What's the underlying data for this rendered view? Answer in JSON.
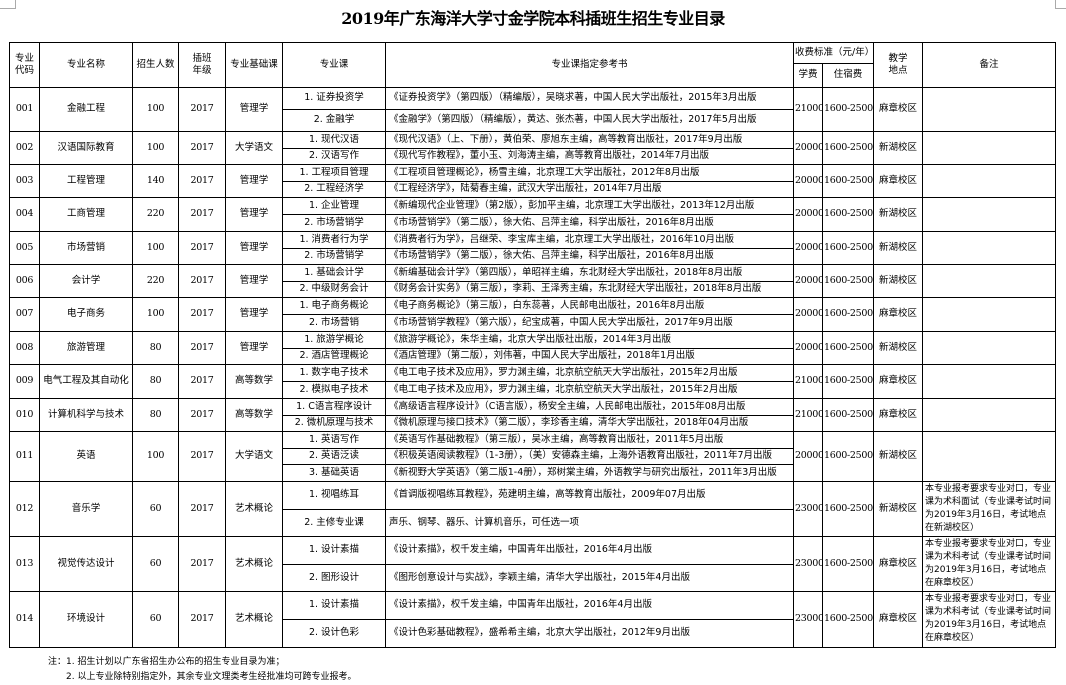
{
  "title": "2019年广东海洋大学寸金学院本科插班生招生专业目录",
  "headers": {
    "code": "专业代码",
    "name": "专业名称",
    "quota": "招生人数",
    "grade": "插班年级",
    "basic_course": "专业基础课",
    "course": "专业课",
    "books": "专业课指定参考书",
    "fees": "收费标准（元/年）",
    "tuition": "学费",
    "dorm": "住宿费",
    "campus": "教学地点",
    "remarks": "备注"
  },
  "rows": [
    {
      "code": "001",
      "name": "金融工程",
      "quota": "100",
      "grade": "2017",
      "basic": "管理学",
      "tuition": "21000",
      "dorm": "1600-2500",
      "campus": "麻章校区",
      "remark": "",
      "courses": [
        {
          "course": "1. 证券投资学",
          "book": "《证券投资学》（第四版）（精编版），吴晓求著，中国人民大学出版社，2015年3月出版"
        },
        {
          "course": "2. 金融学",
          "book": "《金融学》（第四版）（精编版），黄达、张杰著，中国人民大学出版社，2017年5月出版"
        }
      ]
    },
    {
      "code": "002",
      "name": "汉语国际教育",
      "quota": "100",
      "grade": "2017",
      "basic": "大学语文",
      "tuition": "20000",
      "dorm": "1600-2500",
      "campus": "新湖校区",
      "remark": "",
      "courses": [
        {
          "course": "1. 现代汉语",
          "book": "《现代汉语》（上、下册），黄伯荣、廖旭东主编，高等教育出版社，2017年9月出版"
        },
        {
          "course": "2. 汉语写作",
          "book": "《现代写作教程》，董小玉、刘海涛主编，高等教育出版社，2014年7月出版"
        }
      ]
    },
    {
      "code": "003",
      "name": "工程管理",
      "quota": "140",
      "grade": "2017",
      "basic": "管理学",
      "tuition": "20000",
      "dorm": "1600-2500",
      "campus": "麻章校区",
      "remark": "",
      "courses": [
        {
          "course": "1. 工程项目管理",
          "book": "《工程项目管理概论》，杨雪主编，北京理工大学出版社，2012年8月出版"
        },
        {
          "course": "2. 工程经济学",
          "book": "《工程经济学》，陆菊春主编，武汉大学出版社，2014年7月出版"
        }
      ]
    },
    {
      "code": "004",
      "name": "工商管理",
      "quota": "220",
      "grade": "2017",
      "basic": "管理学",
      "tuition": "20000",
      "dorm": "1600-2500",
      "campus": "新湖校区",
      "remark": "",
      "courses": [
        {
          "course": "1. 企业管理",
          "book": "《新编现代企业管理》（第2版），彭加平主编，北京理工大学出版社，2013年12月出版"
        },
        {
          "course": "2. 市场营销学",
          "book": "《市场营销学》（第二版），徐大佑、吕萍主编，科学出版社，2016年8月出版"
        }
      ]
    },
    {
      "code": "005",
      "name": "市场营销",
      "quota": "100",
      "grade": "2017",
      "basic": "管理学",
      "tuition": "20000",
      "dorm": "1600-2500",
      "campus": "新湖校区",
      "remark": "",
      "courses": [
        {
          "course": "1. 消费者行为学",
          "book": "《消费者行为学》，吕继荣、李宝库主编，北京理工大学出版社，2016年10月出版"
        },
        {
          "course": "2. 市场营销学",
          "book": "《市场营销学》（第二版），徐大佑、吕萍主编，科学出版社，2016年8月出版"
        }
      ]
    },
    {
      "code": "006",
      "name": "会计学",
      "quota": "220",
      "grade": "2017",
      "basic": "管理学",
      "tuition": "20000",
      "dorm": "1600-2500",
      "campus": "新湖校区",
      "remark": "",
      "courses": [
        {
          "course": "1. 基础会计学",
          "book": "《新编基础会计学》（第四版），单昭祥主编，东北财经大学出版社，2018年8月出版"
        },
        {
          "course": "2. 中级财务会计",
          "book": "《财务会计实务》（第三版），李莉、王泽秀主编，东北财经大学出版社，2018年8月出版"
        }
      ]
    },
    {
      "code": "007",
      "name": "电子商务",
      "quota": "100",
      "grade": "2017",
      "basic": "管理学",
      "tuition": "20000",
      "dorm": "1600-2500",
      "campus": "麻章校区",
      "remark": "",
      "courses": [
        {
          "course": "1. 电子商务概论",
          "book": "《电子商务概论》（第三版），白东蕊著，人民邮电出版社，2016年8月出版"
        },
        {
          "course": "2. 市场营销",
          "book": "《市场营销学教程》（第六版），纪宝成著，中国人民大学出版社，2017年9月出版"
        }
      ]
    },
    {
      "code": "008",
      "name": "旅游管理",
      "quota": "80",
      "grade": "2017",
      "basic": "管理学",
      "tuition": "20000",
      "dorm": "1600-2500",
      "campus": "新湖校区",
      "remark": "",
      "courses": [
        {
          "course": "1. 旅游学概论",
          "book": "《旅游学概论》，朱华主编，北京大学出版社出版，2014年3月出版"
        },
        {
          "course": "2. 酒店管理概论",
          "book": "《酒店管理》（第二版），刘伟著，中国人民大学出版社，2018年1月出版"
        }
      ]
    },
    {
      "code": "009",
      "name": "电气工程及其自动化",
      "quota": "80",
      "grade": "2017",
      "basic": "高等数学",
      "tuition": "21000",
      "dorm": "1600-2500",
      "campus": "麻章校区",
      "remark": "",
      "courses": [
        {
          "course": "1. 数字电子技术",
          "book": "《电工电子技术及应用》，罗力渊主编，北京航空航天大学出版社，2015年2月出版"
        },
        {
          "course": "2. 模拟电子技术",
          "book": "《电工电子技术及应用》，罗力渊主编，北京航空航天大学出版社，2015年2月出版"
        }
      ]
    },
    {
      "code": "010",
      "name": "计算机科学与技术",
      "quota": "80",
      "grade": "2017",
      "basic": "高等数学",
      "tuition": "21000",
      "dorm": "1600-2500",
      "campus": "麻章校区",
      "remark": "",
      "courses": [
        {
          "course": "1. C语言程序设计",
          "book": "《高级语言程序设计》（C语言版），杨安全主编，人民邮电出版社，2015年08月出版"
        },
        {
          "course": "2. 微机原理与技术",
          "book": "《微机原理与接口技术》（第二版），李珍香主编，清华大学出版社，2018年04月出版"
        }
      ]
    },
    {
      "code": "011",
      "name": "英语",
      "quota": "100",
      "grade": "2017",
      "basic": "大学语文",
      "tuition": "20000",
      "dorm": "1600-2500",
      "campus": "新湖校区",
      "remark": "",
      "courses": [
        {
          "course": "1. 英语写作",
          "book": "《英语写作基础教程》（第三版），吴冰主编，高等教育出版社，2011年5月出版"
        },
        {
          "course": "2. 英语泛读",
          "book": "《积极英语阅读教程》（1-3册），（美）安德森主编，上海外语教育出版社，2011年7月出版"
        },
        {
          "course": "3. 基础英语",
          "book": "《新视野大学英语》（第二版1-4册），郑树棠主编，外语教学与研究出版社，2011年3月出版"
        }
      ]
    },
    {
      "code": "012",
      "name": "音乐学",
      "quota": "60",
      "grade": "2017",
      "basic": "艺术概论",
      "tuition": "23000",
      "dorm": "1600-2500",
      "campus": "新湖校区",
      "remark": "本专业报考要求专业对口，专业课为术科面试（专业课考试时间为2019年3月16日，考试地点在新湖校区）",
      "courses": [
        {
          "course": "1. 视唱练耳",
          "book": "《首调版视唱练耳教程》，苑建明主编，高等教育出版社，2009年07月出版"
        },
        {
          "course": "2. 主修专业课",
          "book": "声乐、钢琴、器乐、计算机音乐，可任选一项"
        }
      ]
    },
    {
      "code": "013",
      "name": "视觉传达设计",
      "quota": "60",
      "grade": "2017",
      "basic": "艺术概论",
      "tuition": "23000",
      "dorm": "1600-2500",
      "campus": "麻章校区",
      "remark": "本专业报考要求专业对口，专业课为术科考试（专业课考试时间为2019年3月16日，考试地点在麻章校区）",
      "courses": [
        {
          "course": "1. 设计素描",
          "book": "《设计素描》，权千发主编，中国青年出版社，2016年4月出版"
        },
        {
          "course": "2. 图形设计",
          "book": "《图形创意设计与实战》，李颖主编，清华大学出版社，2015年4月出版"
        }
      ]
    },
    {
      "code": "014",
      "name": "环境设计",
      "quota": "60",
      "grade": "2017",
      "basic": "艺术概论",
      "tuition": "23000",
      "dorm": "1600-2500",
      "campus": "麻章校区",
      "remark": "本专业报考要求专业对口，专业课为术科考试（专业课考试时间为2019年3月16日，考试地点在麻章校区）",
      "courses": [
        {
          "course": "1. 设计素描",
          "book": "《设计素描》，权千发主编，中国青年出版社，2016年4月出版"
        },
        {
          "course": "2. 设计色彩",
          "book": "《设计色彩基础教程》，盛希希主编，北京大学出版社，2012年9月出版"
        }
      ]
    }
  ],
  "notes": [
    "注：1. 招生计划以广东省招生办公布的招生专业目录为准；",
    "2. 以上专业除特别指定外，其余专业文理类考生经批准均可跨专业报考。"
  ]
}
